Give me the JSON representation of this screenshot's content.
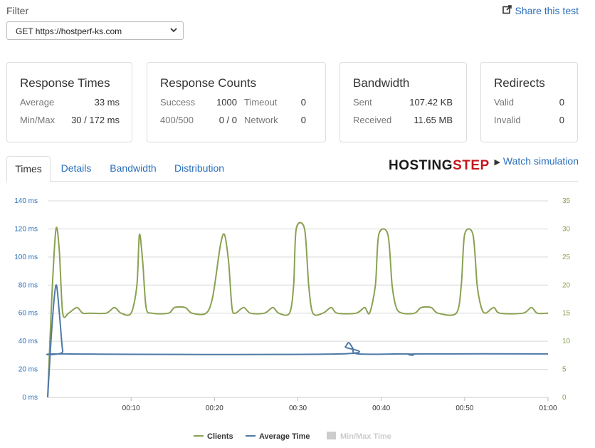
{
  "filter": {
    "label": "Filter",
    "selected": "GET https://hostperf-ks.com"
  },
  "share": {
    "label": "Share this test"
  },
  "cards": {
    "response_times": {
      "title": "Response Times",
      "average_label": "Average",
      "average_value": "33 ms",
      "minmax_label": "Min/Max",
      "minmax_value": "30 / 172 ms"
    },
    "response_counts": {
      "title": "Response Counts",
      "success_label": "Success",
      "success_value": "1000",
      "timeout_label": "Timeout",
      "timeout_value": "0",
      "r400_label": "400/500",
      "r400_value": "0 / 0",
      "network_label": "Network",
      "network_value": "0"
    },
    "bandwidth": {
      "title": "Bandwidth",
      "sent_label": "Sent",
      "sent_value": "107.42 KB",
      "received_label": "Received",
      "received_value": "11.65 MB"
    },
    "redirects": {
      "title": "Redirects",
      "valid_label": "Valid",
      "valid_value": "0",
      "invalid_label": "Invalid",
      "invalid_value": "0"
    }
  },
  "tabs": [
    {
      "label": "Times",
      "active": true
    },
    {
      "label": "Details",
      "active": false
    },
    {
      "label": "Bandwidth",
      "active": false
    },
    {
      "label": "Distribution",
      "active": false
    }
  ],
  "logo": {
    "part1": "HOSTING",
    "part2": "STEP"
  },
  "watch": {
    "label": "Watch simulation"
  },
  "colors": {
    "clients": "#8aa152",
    "average": "#4f79a7",
    "minmax": "#cccccc",
    "link": "#2a6ebb"
  },
  "chart_data": {
    "type": "line",
    "x_ticks": [
      "00:10",
      "00:20",
      "00:30",
      "00:40",
      "00:50",
      "01:00"
    ],
    "y_left_ticks": [
      "0 ms",
      "20 ms",
      "40 ms",
      "60 ms",
      "80 ms",
      "100 ms",
      "120 ms",
      "140 ms"
    ],
    "y_right_ticks": [
      "0",
      "5",
      "10",
      "15",
      "20",
      "25",
      "30",
      "35"
    ],
    "y_left_range": [
      0,
      140
    ],
    "y_right_range": [
      0,
      35
    ],
    "x_range_seconds": [
      0,
      60
    ],
    "grid": true,
    "legend_position": "bottom",
    "series": [
      {
        "name": "Clients",
        "axis": "right",
        "points": [
          [
            0,
            0
          ],
          [
            0.5,
            18
          ],
          [
            1,
            30
          ],
          [
            1.4,
            26
          ],
          [
            1.8,
            15
          ],
          [
            2.5,
            15
          ],
          [
            3.5,
            16
          ],
          [
            4.2,
            15
          ],
          [
            5,
            15
          ],
          [
            7,
            15
          ],
          [
            8,
            16
          ],
          [
            8.8,
            15
          ],
          [
            10,
            15
          ],
          [
            10.7,
            20
          ],
          [
            11,
            29
          ],
          [
            11.4,
            24
          ],
          [
            11.8,
            16
          ],
          [
            12.5,
            15
          ],
          [
            14.5,
            15
          ],
          [
            15.2,
            16
          ],
          [
            16.5,
            16
          ],
          [
            17.3,
            15
          ],
          [
            19,
            15
          ],
          [
            19.8,
            18
          ],
          [
            20.7,
            27
          ],
          [
            21.2,
            29
          ],
          [
            21.7,
            24
          ],
          [
            22.1,
            16
          ],
          [
            22.5,
            15
          ],
          [
            23.5,
            16
          ],
          [
            24.3,
            15
          ],
          [
            26,
            15
          ],
          [
            27,
            16
          ],
          [
            27.7,
            15
          ],
          [
            29,
            15
          ],
          [
            29.5,
            20
          ],
          [
            29.8,
            30
          ],
          [
            30.8,
            30
          ],
          [
            31.3,
            20
          ],
          [
            31.8,
            15
          ],
          [
            33,
            15
          ],
          [
            34,
            16
          ],
          [
            34.7,
            15
          ],
          [
            37,
            15
          ],
          [
            38,
            16
          ],
          [
            38.6,
            15
          ],
          [
            39.3,
            20
          ],
          [
            39.7,
            29
          ],
          [
            40.8,
            29
          ],
          [
            41.3,
            20
          ],
          [
            41.8,
            16
          ],
          [
            42.5,
            15
          ],
          [
            44,
            15
          ],
          [
            44.8,
            16
          ],
          [
            46,
            16
          ],
          [
            46.8,
            15
          ],
          [
            49,
            15
          ],
          [
            49.6,
            20
          ],
          [
            50,
            29
          ],
          [
            51,
            29
          ],
          [
            51.5,
            20
          ],
          [
            52,
            16
          ],
          [
            52.5,
            15
          ],
          [
            53.5,
            16
          ],
          [
            54.2,
            15
          ],
          [
            57,
            15
          ],
          [
            58,
            16
          ],
          [
            58.7,
            15
          ],
          [
            60,
            15
          ]
        ]
      },
      {
        "name": "Average Time",
        "axis": "left",
        "points": [
          [
            0,
            0
          ],
          [
            0.5,
            50
          ],
          [
            1,
            80
          ],
          [
            1.4,
            60
          ],
          [
            1.8,
            33
          ],
          [
            2.2,
            31
          ],
          [
            35,
            31
          ],
          [
            35.7,
            36
          ],
          [
            36.1,
            39
          ],
          [
            36.6,
            35
          ],
          [
            37.2,
            31
          ],
          [
            43,
            31
          ],
          [
            43.8,
            30
          ],
          [
            44.5,
            31
          ],
          [
            60,
            31
          ]
        ]
      },
      {
        "name": "Min/Max Time",
        "axis": "left",
        "points": [],
        "disabled": true
      }
    ]
  }
}
